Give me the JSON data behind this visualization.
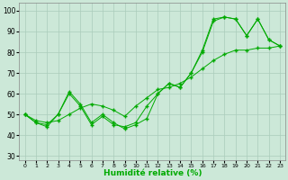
{
  "xlabel": "Humidité relative (%)",
  "background_color": "#cce8d8",
  "grid_color": "#aaccbb",
  "line_color": "#00aa00",
  "marker_color": "#00aa00",
  "xlim": [
    -0.5,
    23.5
  ],
  "ylim": [
    28,
    104
  ],
  "yticks": [
    30,
    40,
    50,
    60,
    70,
    80,
    90,
    100
  ],
  "xticks": [
    0,
    1,
    2,
    3,
    4,
    5,
    6,
    7,
    8,
    9,
    10,
    11,
    12,
    13,
    14,
    15,
    16,
    17,
    18,
    19,
    20,
    21,
    22,
    23
  ],
  "series": [
    [
      50,
      46,
      45,
      50,
      61,
      55,
      46,
      50,
      46,
      43,
      45,
      48,
      60,
      65,
      63,
      70,
      81,
      96,
      97,
      96,
      88,
      96,
      86,
      83
    ],
    [
      50,
      46,
      44,
      50,
      60,
      54,
      45,
      49,
      45,
      44,
      46,
      54,
      60,
      65,
      63,
      70,
      80,
      95,
      97,
      96,
      88,
      96,
      86,
      83
    ],
    [
      50,
      47,
      46,
      47,
      50,
      53,
      55,
      54,
      52,
      49,
      54,
      58,
      62,
      63,
      65,
      68,
      72,
      76,
      79,
      81,
      81,
      82,
      82,
      83
    ]
  ]
}
